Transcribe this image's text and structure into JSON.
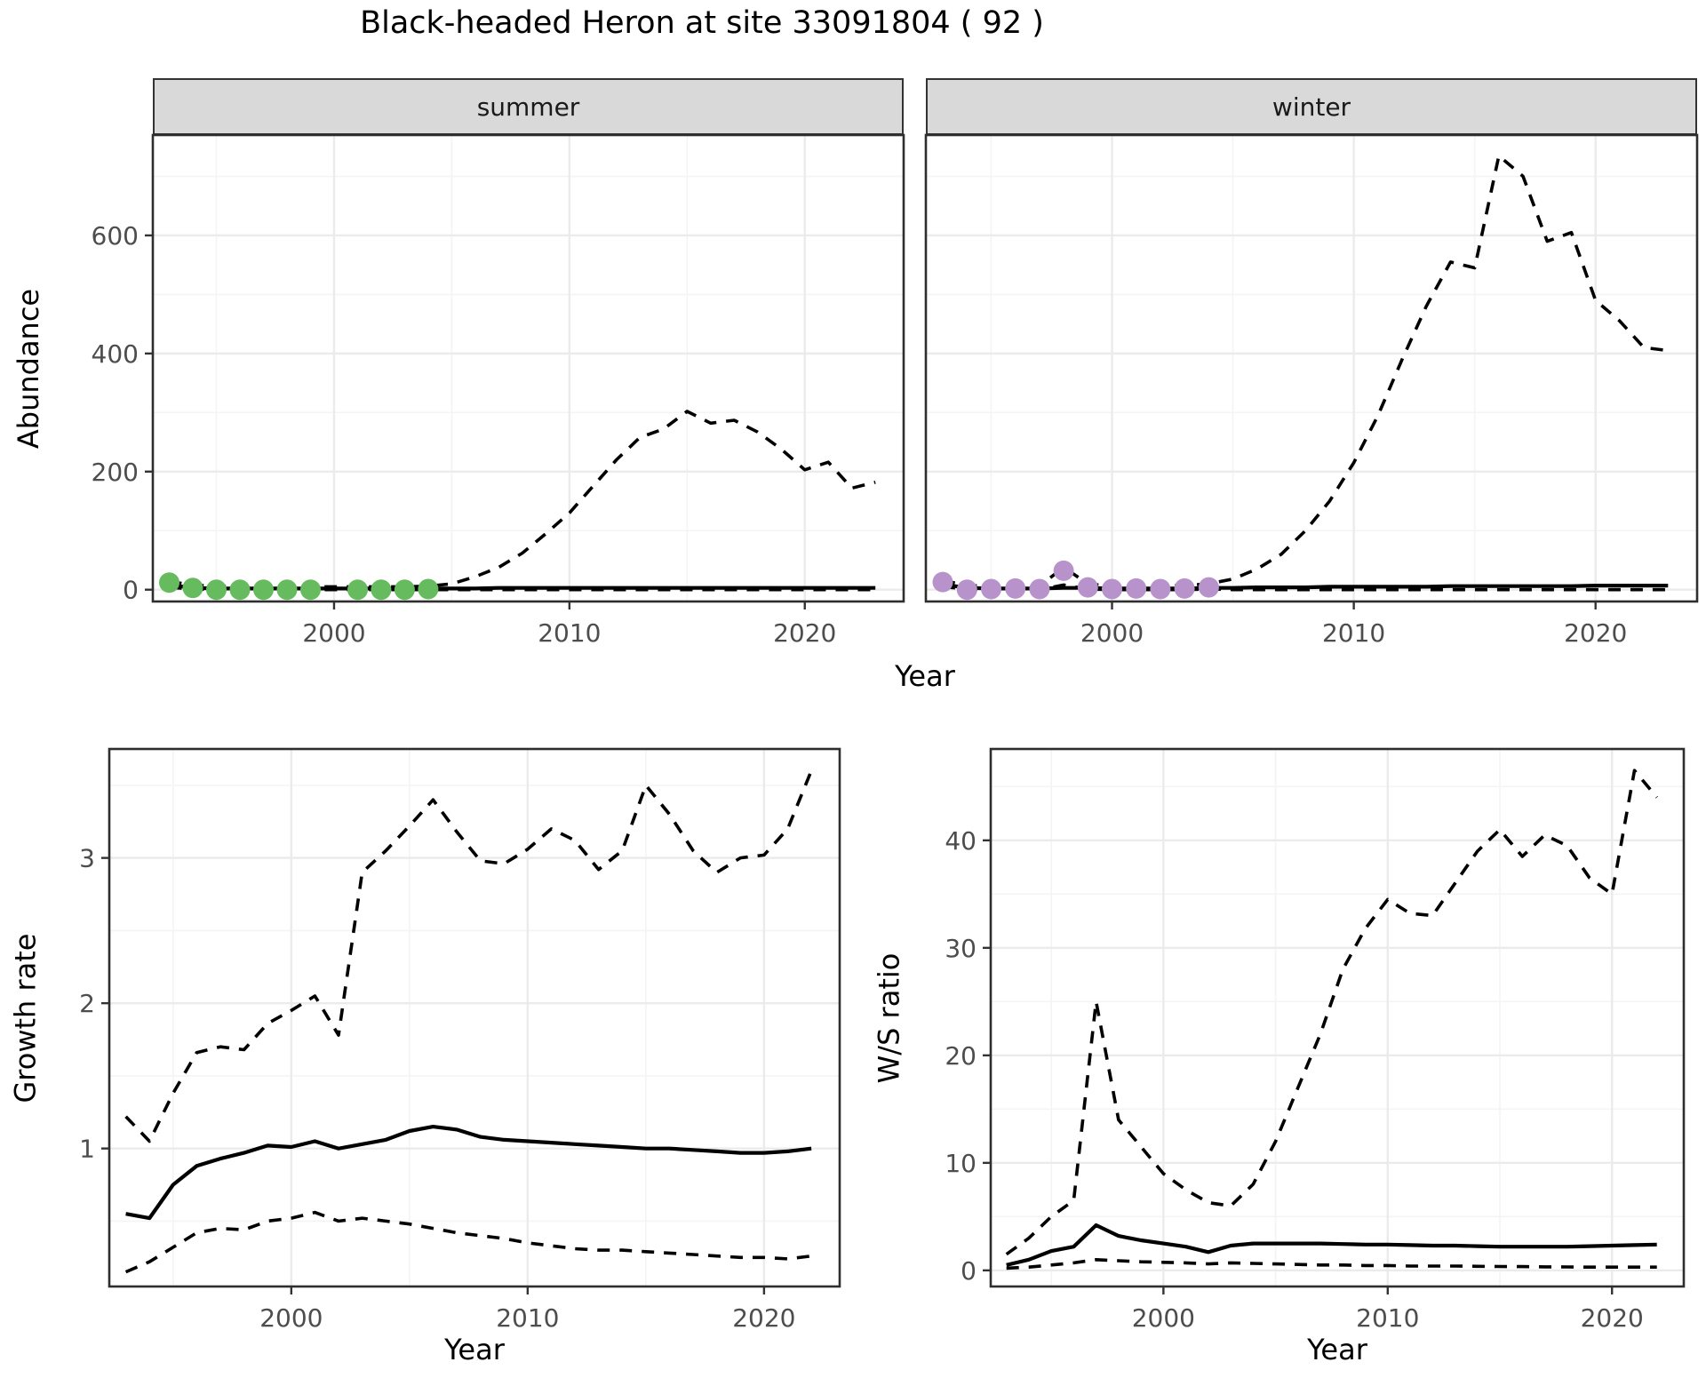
{
  "title": "Black-headed Heron at site 33091804 ( 92 )",
  "colors": {
    "line": "#000000",
    "observed_summer": "#66BB5E",
    "observed_winter": "#B792CB",
    "grid_major": "#EBEBEB",
    "grid_minor": "#F4F4F4",
    "panel_border": "#2E2E2E",
    "tick_mark": "#333333",
    "tick_text": "#4D4D4D",
    "strip_bg": "#D9D9D9"
  },
  "chart_data": [
    {
      "id": "abundance_summer",
      "type": "line",
      "title": "summer",
      "xlabel": "Year",
      "ylabel": "Abundance",
      "xlim": [
        1992.3,
        2024.2
      ],
      "ylim": [
        -20,
        770
      ],
      "xticks": [
        2000,
        2010,
        2020
      ],
      "yticks": [
        0,
        200,
        400,
        600
      ],
      "xticks_minor": [
        1995,
        2005,
        2015
      ],
      "yticks_minor": [
        100,
        300,
        500,
        700
      ],
      "x": [
        1993,
        1994,
        1995,
        1996,
        1997,
        1998,
        1999,
        2000,
        2001,
        2002,
        2003,
        2004,
        2005,
        2006,
        2007,
        2008,
        2009,
        2010,
        2011,
        2012,
        2013,
        2014,
        2015,
        2016,
        2017,
        2018,
        2019,
        2020,
        2021,
        2022,
        2023
      ],
      "series": [
        {
          "name": "upper_ci",
          "style": "dashed",
          "values": [
            14,
            8,
            6,
            5,
            5,
            5,
            5,
            5,
            5,
            5,
            5,
            6,
            10,
            22,
            38,
            62,
            95,
            130,
            175,
            220,
            258,
            272,
            302,
            282,
            287,
            267,
            238,
            203,
            216,
            172,
            182
          ]
        },
        {
          "name": "lower_ci",
          "style": "dashed",
          "values": [
            4,
            1,
            0,
            0,
            0,
            0,
            0,
            0,
            0,
            0,
            0,
            0,
            0,
            0,
            0,
            0,
            0,
            0,
            0,
            0,
            0,
            0,
            0,
            0,
            0,
            0,
            0,
            0,
            0,
            0,
            0
          ]
        },
        {
          "name": "fitted_median",
          "style": "solid",
          "values": [
            8,
            3,
            2,
            2,
            2,
            2,
            2,
            2,
            2,
            2,
            2,
            2,
            2,
            2,
            3,
            3,
            3,
            3,
            3,
            3,
            3,
            3,
            3,
            3,
            3,
            3,
            3,
            3,
            3,
            3,
            3
          ]
        }
      ],
      "points": {
        "name": "observed_counts",
        "color_key": "observed_summer",
        "x": [
          1993,
          1994,
          1995,
          1996,
          1997,
          1998,
          1999,
          2001,
          2002,
          2003,
          2004
        ],
        "y": [
          12,
          3,
          0,
          0,
          0,
          0,
          0,
          0,
          0,
          0,
          1
        ]
      }
    },
    {
      "id": "abundance_winter",
      "type": "line",
      "title": "winter",
      "xlabel": "Year",
      "ylabel": "Abundance",
      "xlim": [
        1992.3,
        2024.2
      ],
      "ylim": [
        -20,
        770
      ],
      "xticks": [
        2000,
        2010,
        2020
      ],
      "yticks": [
        0,
        200,
        400,
        600
      ],
      "xticks_minor": [
        1995,
        2005,
        2015
      ],
      "yticks_minor": [
        100,
        300,
        500,
        700
      ],
      "x": [
        1993,
        1994,
        1995,
        1996,
        1997,
        1998,
        1999,
        2000,
        2001,
        2002,
        2003,
        2004,
        2005,
        2006,
        2007,
        2008,
        2009,
        2010,
        2011,
        2012,
        2013,
        2014,
        2015,
        2016,
        2017,
        2018,
        2019,
        2020,
        2021,
        2022,
        2023
      ],
      "series": [
        {
          "name": "upper_ci",
          "style": "dashed",
          "values": [
            16,
            7,
            6,
            7,
            6,
            38,
            10,
            6,
            7,
            6,
            7,
            10,
            18,
            35,
            60,
            100,
            150,
            215,
            295,
            390,
            480,
            555,
            545,
            735,
            700,
            590,
            605,
            490,
            455,
            410,
            405
          ]
        },
        {
          "name": "lower_ci",
          "style": "dashed",
          "values": [
            5,
            1,
            0,
            0,
            0,
            8,
            1,
            0,
            0,
            0,
            0,
            1,
            0,
            0,
            0,
            0,
            0,
            0,
            0,
            0,
            0,
            0,
            0,
            0,
            0,
            0,
            0,
            0,
            0,
            0,
            0
          ]
        },
        {
          "name": "fitted_median",
          "style": "solid",
          "values": [
            9,
            3,
            2,
            2,
            2,
            3,
            3,
            2,
            2,
            2,
            2,
            3,
            3,
            4,
            4,
            4,
            5,
            5,
            5,
            5,
            5,
            6,
            6,
            6,
            6,
            6,
            6,
            7,
            7,
            7,
            7
          ]
        }
      ],
      "points": {
        "name": "observed_counts",
        "color_key": "observed_winter",
        "x": [
          1993,
          1994,
          1995,
          1996,
          1997,
          1998,
          1999,
          2000,
          2001,
          2002,
          2003,
          2004
        ],
        "y": [
          13,
          0,
          1,
          2,
          1,
          32,
          4,
          1,
          2,
          1,
          2,
          4
        ]
      }
    },
    {
      "id": "growth_rate",
      "type": "line",
      "title": "",
      "xlabel": "Year",
      "ylabel": "Growth rate",
      "xlim": [
        1992.3,
        2023.2
      ],
      "ylim": [
        0.05,
        3.75
      ],
      "xticks": [
        2000,
        2010,
        2020
      ],
      "yticks": [
        1,
        2,
        3
      ],
      "xticks_minor": [
        1995,
        2005,
        2015
      ],
      "yticks_minor": [
        0.5,
        1.5,
        2.5,
        3.5
      ],
      "x": [
        1993,
        1994,
        1995,
        1996,
        1997,
        1998,
        1999,
        2000,
        2001,
        2002,
        2003,
        2004,
        2005,
        2006,
        2007,
        2008,
        2009,
        2010,
        2011,
        2012,
        2013,
        2014,
        2015,
        2016,
        2017,
        2018,
        2019,
        2020,
        2021,
        2022
      ],
      "series": [
        {
          "name": "upper_ci",
          "style": "dashed",
          "values": [
            1.22,
            1.05,
            1.38,
            1.66,
            1.7,
            1.68,
            1.86,
            1.95,
            2.05,
            1.78,
            2.9,
            3.05,
            3.22,
            3.4,
            3.18,
            2.98,
            2.96,
            3.06,
            3.2,
            3.12,
            2.92,
            3.05,
            3.5,
            3.3,
            3.05,
            2.9,
            3.0,
            3.02,
            3.2,
            3.6
          ]
        },
        {
          "name": "lower_ci",
          "style": "dashed",
          "values": [
            0.15,
            0.22,
            0.32,
            0.42,
            0.45,
            0.44,
            0.5,
            0.52,
            0.56,
            0.5,
            0.52,
            0.5,
            0.48,
            0.45,
            0.42,
            0.4,
            0.38,
            0.35,
            0.33,
            0.31,
            0.3,
            0.3,
            0.29,
            0.28,
            0.27,
            0.26,
            0.25,
            0.25,
            0.24,
            0.26
          ]
        },
        {
          "name": "median",
          "style": "solid",
          "values": [
            0.55,
            0.52,
            0.75,
            0.88,
            0.93,
            0.97,
            1.02,
            1.01,
            1.05,
            1.0,
            1.03,
            1.06,
            1.12,
            1.15,
            1.13,
            1.08,
            1.06,
            1.05,
            1.04,
            1.03,
            1.02,
            1.01,
            1.0,
            1.0,
            0.99,
            0.98,
            0.97,
            0.97,
            0.98,
            1.0
          ]
        }
      ],
      "points": null
    },
    {
      "id": "ws_ratio",
      "type": "line",
      "title": "",
      "xlabel": "Year",
      "ylabel": "W/S ratio",
      "xlim": [
        1992.3,
        2023.2
      ],
      "ylim": [
        -1.5,
        48.5
      ],
      "xticks": [
        2000,
        2010,
        2020
      ],
      "yticks": [
        0,
        10,
        20,
        30,
        40
      ],
      "xticks_minor": [
        1995,
        2005,
        2015
      ],
      "yticks_minor": [
        5,
        15,
        25,
        35,
        45
      ],
      "x": [
        1993,
        1994,
        1995,
        1996,
        1997,
        1998,
        1999,
        2000,
        2001,
        2002,
        2003,
        2004,
        2005,
        2006,
        2007,
        2008,
        2009,
        2010,
        2011,
        2012,
        2013,
        2014,
        2015,
        2016,
        2017,
        2018,
        2019,
        2020,
        2021,
        2022
      ],
      "series": [
        {
          "name": "upper_ci",
          "style": "dashed",
          "values": [
            1.5,
            3.0,
            5.0,
            6.5,
            25.0,
            14.0,
            11.5,
            9.0,
            7.5,
            6.3,
            6.0,
            8.0,
            12.0,
            17.0,
            22.0,
            28.0,
            31.8,
            34.5,
            33.2,
            33.0,
            36.0,
            39.0,
            41.0,
            38.5,
            40.5,
            39.5,
            36.5,
            35.0,
            46.5,
            44.0
          ]
        },
        {
          "name": "lower_ci",
          "style": "dashed",
          "values": [
            0.2,
            0.3,
            0.5,
            0.7,
            1.0,
            0.9,
            0.8,
            0.75,
            0.7,
            0.6,
            0.7,
            0.65,
            0.6,
            0.55,
            0.5,
            0.5,
            0.45,
            0.45,
            0.4,
            0.4,
            0.4,
            0.38,
            0.36,
            0.35,
            0.33,
            0.32,
            0.3,
            0.3,
            0.3,
            0.3
          ]
        },
        {
          "name": "median",
          "style": "solid",
          "values": [
            0.5,
            1.0,
            1.8,
            2.2,
            4.2,
            3.2,
            2.8,
            2.5,
            2.2,
            1.7,
            2.3,
            2.5,
            2.5,
            2.5,
            2.5,
            2.45,
            2.4,
            2.4,
            2.35,
            2.3,
            2.3,
            2.25,
            2.2,
            2.2,
            2.2,
            2.2,
            2.25,
            2.3,
            2.35,
            2.4
          ]
        }
      ],
      "points": null
    }
  ]
}
